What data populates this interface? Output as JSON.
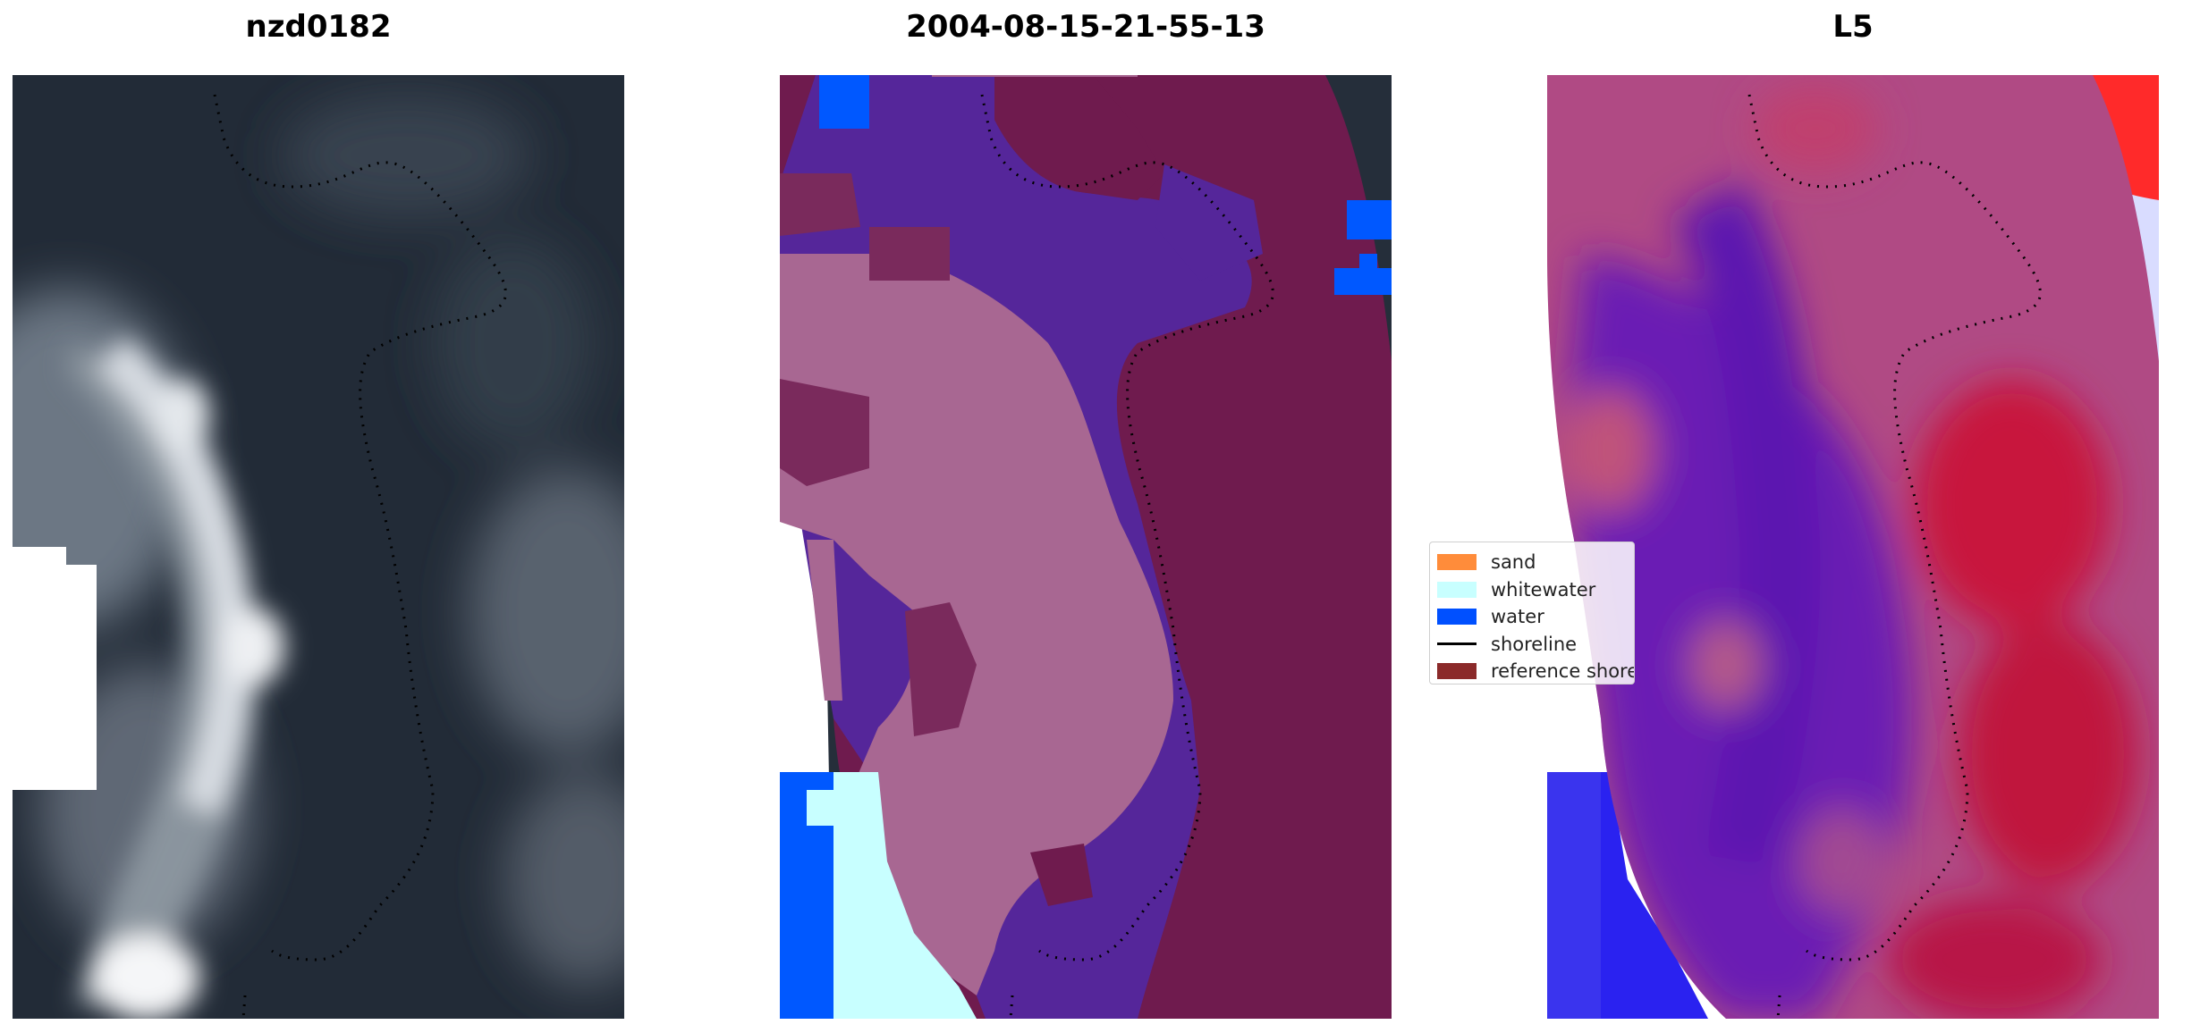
{
  "panels": {
    "left": {
      "title": "nzd0182"
    },
    "middle": {
      "title": "2004-08-15-21-55-13"
    },
    "right": {
      "title": "L5"
    }
  },
  "legend": {
    "items": [
      {
        "label": "sand",
        "color": "#ff8c3a",
        "kind": "patch"
      },
      {
        "label": "whitewater",
        "color": "#c8ffff",
        "kind": "patch"
      },
      {
        "label": "water",
        "color": "#0050ff",
        "kind": "patch"
      },
      {
        "label": "shoreline",
        "color": "#000000",
        "kind": "line"
      },
      {
        "label": "reference shoreline",
        "color": "#8b2a2a",
        "kind": "patch"
      }
    ]
  },
  "colors": {
    "cloud_dark": "#212a36",
    "cloud_light": "#dde1e6",
    "class_violet": "#55269a",
    "class_pink": "#a86792",
    "class_maroon": "#6f1b4e",
    "index_red": "#d10a3a",
    "index_blue": "#2018f0"
  }
}
